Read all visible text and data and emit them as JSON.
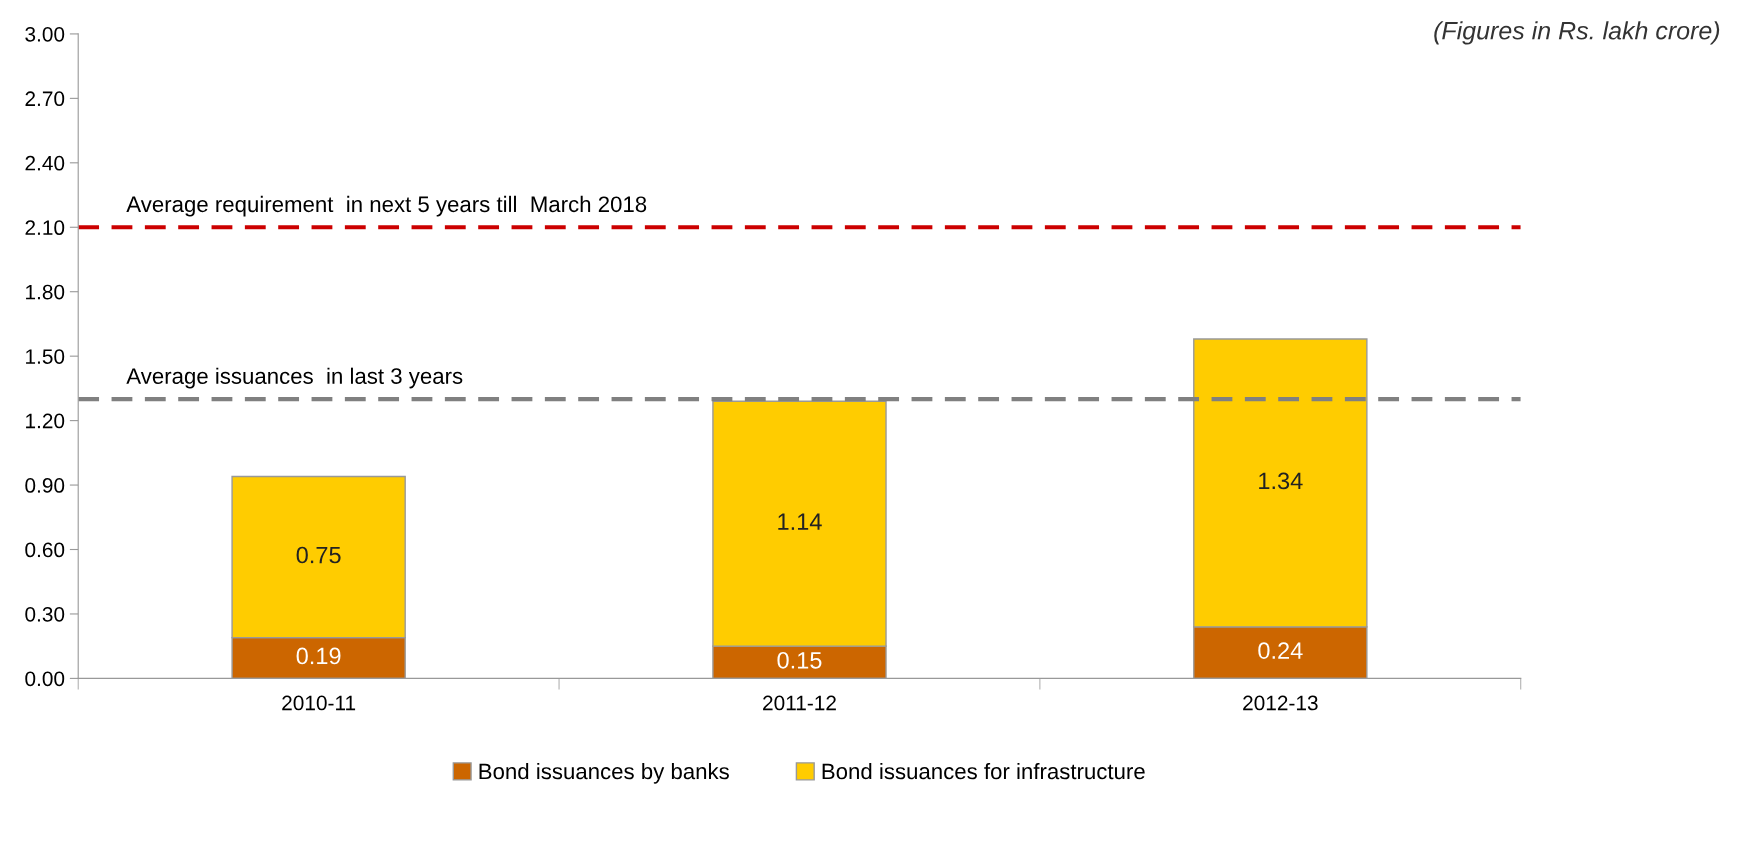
{
  "chart_data": {
    "type": "bar",
    "stacked": true,
    "categories": [
      "2010-11",
      "2011-12",
      "2012-13"
    ],
    "series": [
      {
        "name": "Bond issuances by banks",
        "color": "#cc6600",
        "values": [
          0.19,
          0.15,
          0.24
        ]
      },
      {
        "name": "Bond issuances for infrastructure",
        "color": "#ffcc00",
        "values": [
          0.75,
          1.14,
          1.34
        ]
      }
    ],
    "ylim": [
      0,
      3
    ],
    "yticks": [
      {
        "value": 0,
        "label": "0.00"
      },
      {
        "value": 0.3,
        "label": "0.30"
      },
      {
        "value": 0.6,
        "label": "0.60"
      },
      {
        "value": 0.9,
        "label": "0.90"
      },
      {
        "value": 1.2,
        "label": "1.20"
      },
      {
        "value": 1.5,
        "label": "1.50"
      },
      {
        "value": 1.8,
        "label": "1.80"
      },
      {
        "value": 2.1,
        "label": "2.10"
      },
      {
        "value": 2.4,
        "label": "2.40"
      },
      {
        "value": 2.7,
        "label": "2.70"
      },
      {
        "value": 3,
        "label": "3.00"
      }
    ],
    "ref_lines": [
      {
        "axis": "y",
        "value": 2.1,
        "label": "Average requirement  in next 5 years till  March 2018",
        "color": "#cc0000",
        "line_style": "dashed"
      },
      {
        "axis": "y",
        "value": 1.3,
        "label": "Average issuances  in last 3 years",
        "color": "#808080",
        "line_style": "dashed"
      }
    ],
    "annotations": [
      "(Figures in Rs. lakh crore)"
    ],
    "data_labels": true,
    "grid": false,
    "legend": "bottom"
  }
}
